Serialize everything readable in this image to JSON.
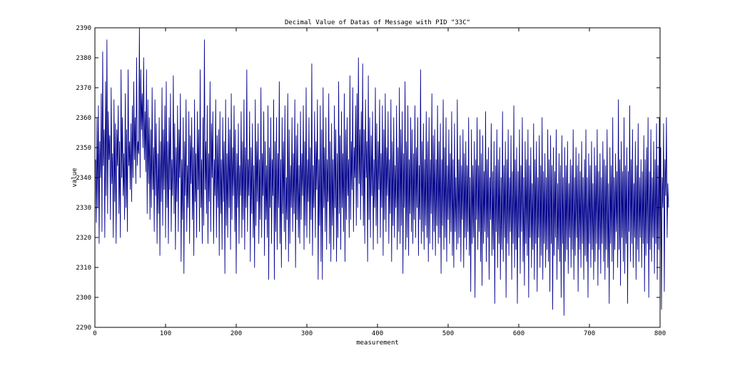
{
  "chart_data": {
    "type": "line",
    "title": "Decimal Value of Datas of Message with PID \"33C\"",
    "xlabel": "measurement",
    "ylabel": "value",
    "xlim": [
      0,
      800
    ],
    "ylim": [
      2290,
      2390
    ],
    "xticks": [
      0,
      100,
      200,
      300,
      400,
      500,
      600,
      700,
      800
    ],
    "yticks": [
      2290,
      2300,
      2310,
      2320,
      2330,
      2340,
      2350,
      2360,
      2370,
      2380,
      2390
    ],
    "grid": false,
    "series": [
      {
        "color": "#00008b",
        "x_start": 1,
        "x_step": 1,
        "values": [
          2346,
          2325,
          2360,
          2330,
          2364,
          2318,
          2352,
          2340,
          2368,
          2322,
          2382,
          2344,
          2356,
          2320,
          2372,
          2334,
          2386,
          2328,
          2362,
          2346,
          2354,
          2326,
          2370,
          2338,
          2348,
          2320,
          2366,
          2332,
          2358,
          2318,
          2356,
          2344,
          2364,
          2328,
          2352,
          2320,
          2376,
          2340,
          2360,
          2334,
          2348,
          2326,
          2368,
          2330,
          2356,
          2322,
          2376,
          2344,
          2352,
          2336,
          2358,
          2332,
          2364,
          2340,
          2372,
          2346,
          2360,
          2338,
          2380,
          2344,
          2352,
          2348,
          2390,
          2340,
          2376,
          2356,
          2368,
          2350,
          2380,
          2346,
          2362,
          2342,
          2376,
          2328,
          2366,
          2338,
          2360,
          2326,
          2356,
          2330,
          2370,
          2336,
          2350,
          2322,
          2366,
          2334,
          2358,
          2318,
          2348,
          2328,
          2360,
          2314,
          2352,
          2332,
          2370,
          2324,
          2356,
          2336,
          2364,
          2320,
          2372,
          2330,
          2352,
          2318,
          2360,
          2336,
          2368,
          2322,
          2346,
          2334,
          2374,
          2328,
          2358,
          2316,
          2350,
          2332,
          2364,
          2322,
          2356,
          2340,
          2368,
          2312,
          2346,
          2326,
          2360,
          2308,
          2352,
          2334,
          2366,
          2322,
          2344,
          2330,
          2362,
          2318,
          2354,
          2338,
          2360,
          2326,
          2350,
          2314,
          2366,
          2332,
          2348,
          2320,
          2362,
          2336,
          2356,
          2322,
          2376,
          2330,
          2346,
          2318,
          2360,
          2324,
          2386,
          2336,
          2352,
          2328,
          2364,
          2318,
          2348,
          2332,
          2372,
          2322,
          2358,
          2340,
          2362,
          2318,
          2346,
          2334,
          2366,
          2320,
          2354,
          2330,
          2356,
          2314,
          2362,
          2328,
          2346,
          2316,
          2360,
          2332,
          2352,
          2308,
          2366,
          2324,
          2348,
          2320,
          2360,
          2330,
          2356,
          2316,
          2368,
          2326,
          2350,
          2334,
          2364,
          2322,
          2356,
          2308,
          2348,
          2330,
          2358,
          2318,
          2344,
          2334,
          2362,
          2320,
          2352,
          2326,
          2366,
          2316,
          2350,
          2330,
          2376,
          2322,
          2346,
          2334,
          2362,
          2312,
          2350,
          2328,
          2358,
          2320,
          2344,
          2310,
          2366,
          2324,
          2352,
          2332,
          2358,
          2318,
          2346,
          2326,
          2370,
          2320,
          2348,
          2334,
          2362,
          2314,
          2352,
          2326,
          2344,
          2320,
          2364,
          2306,
          2350,
          2330,
          2360,
          2318,
          2346,
          2334,
          2366,
          2306,
          2352,
          2322,
          2360,
          2316,
          2348,
          2330,
          2372,
          2318,
          2346,
          2310,
          2360,
          2328,
          2352,
          2322,
          2364,
          2316,
          2340,
          2326,
          2368,
          2312,
          2356,
          2318,
          2344,
          2330,
          2360,
          2322,
          2348,
          2328,
          2366,
          2310,
          2354,
          2326,
          2358,
          2320,
          2344,
          2318,
          2362,
          2326,
          2348,
          2334,
          2364,
          2316,
          2352,
          2324,
          2370,
          2320,
          2346,
          2332,
          2360,
          2318,
          2350,
          2326,
          2378,
          2314,
          2344,
          2330,
          2362,
          2320,
          2352,
          2336,
          2366,
          2306,
          2346,
          2324,
          2364,
          2312,
          2356,
          2306,
          2370,
          2330,
          2350,
          2322,
          2360,
          2316,
          2346,
          2332,
          2368,
          2318,
          2352,
          2312,
          2358,
          2324,
          2346,
          2316,
          2364,
          2330,
          2356,
          2312,
          2348,
          2320,
          2372,
          2328,
          2354,
          2316,
          2362,
          2330,
          2348,
          2322,
          2368,
          2312,
          2356,
          2326,
          2360,
          2334,
          2346,
          2320,
          2374,
          2326,
          2352,
          2336,
          2370,
          2322,
          2350,
          2340,
          2364,
          2324,
          2368,
          2330,
          2380,
          2338,
          2356,
          2326,
          2362,
          2334,
          2378,
          2324,
          2356,
          2318,
          2366,
          2340,
          2352,
          2312,
          2374,
          2326,
          2360,
          2320,
          2354,
          2334,
          2362,
          2316,
          2346,
          2330,
          2370,
          2324,
          2358,
          2318,
          2352,
          2336,
          2366,
          2320,
          2348,
          2330,
          2364,
          2314,
          2356,
          2326,
          2368,
          2322,
          2350,
          2334,
          2362,
          2318,
          2346,
          2328,
          2366,
          2312,
          2352,
          2324,
          2360,
          2320,
          2344,
          2330,
          2364,
          2316,
          2350,
          2322,
          2370,
          2318,
          2356,
          2324,
          2362,
          2308,
          2348,
          2330,
          2372,
          2316,
          2352,
          2320,
          2364,
          2314,
          2346,
          2328,
          2360,
          2322,
          2356,
          2318,
          2348,
          2326,
          2364,
          2320,
          2350,
          2330,
          2360,
          2314,
          2344,
          2326,
          2376,
          2318,
          2352,
          2322,
          2358,
          2316,
          2346,
          2324,
          2362,
          2320,
          2352,
          2312,
          2360,
          2318,
          2346,
          2328,
          2368,
          2316,
          2354,
          2322,
          2356,
          2314,
          2346,
          2324,
          2364,
          2318,
          2352,
          2320,
          2358,
          2308,
          2346,
          2324,
          2366,
          2316,
          2350,
          2320,
          2360,
          2312,
          2344,
          2326,
          2356,
          2318,
          2348,
          2322,
          2362,
          2314,
          2346,
          2310,
          2358,
          2322,
          2340,
          2316,
          2366,
          2318,
          2346,
          2320,
          2354,
          2312,
          2344,
          2326,
          2356,
          2310,
          2348,
          2320,
          2352,
          2316,
          2344,
          2322,
          2360,
          2314,
          2340,
          2302,
          2356,
          2318,
          2344,
          2320,
          2352,
          2300,
          2346,
          2326,
          2360,
          2316,
          2344,
          2322,
          2356,
          2312,
          2348,
          2304,
          2354,
          2318,
          2342,
          2322,
          2362,
          2312,
          2346,
          2320,
          2350,
          2306,
          2340,
          2326,
          2358,
          2314,
          2342,
          2316,
          2352,
          2298,
          2344,
          2322,
          2356,
          2310,
          2346,
          2318,
          2350,
          2306,
          2340,
          2316,
          2362,
          2312,
          2344,
          2320,
          2352,
          2300,
          2346,
          2318,
          2356,
          2314,
          2340,
          2322,
          2354,
          2306,
          2342,
          2318,
          2364,
          2310,
          2346,
          2316,
          2350,
          2298,
          2342,
          2320,
          2356,
          2308,
          2344,
          2322,
          2360,
          2312,
          2340,
          2304,
          2352,
          2318,
          2346,
          2314,
          2356,
          2300,
          2344,
          2320,
          2350,
          2310,
          2338,
          2316,
          2358,
          2306,
          2346,
          2318,
          2352,
          2302,
          2340,
          2320,
          2354,
          2310,
          2344,
          2314,
          2360,
          2306,
          2342,
          2318,
          2348,
          2310,
          2340,
          2316,
          2356,
          2312,
          2346,
          2302,
          2354,
          2318,
          2344,
          2296,
          2350,
          2314,
          2342,
          2320,
          2356,
          2306,
          2338,
          2316,
          2348,
          2312,
          2344,
          2300,
          2354,
          2318,
          2340,
          2294,
          2350,
          2312,
          2344,
          2316,
          2352,
          2308,
          2338,
          2320,
          2346,
          2310,
          2344,
          2316,
          2356,
          2306,
          2340,
          2314,
          2350,
          2320,
          2344,
          2302,
          2348,
          2316,
          2342,
          2310,
          2352,
          2318,
          2340,
          2306,
          2346,
          2314,
          2356,
          2312,
          2340,
          2300,
          2348,
          2318,
          2344,
          2310,
          2352,
          2316,
          2338,
          2306,
          2350,
          2312,
          2344,
          2318,
          2356,
          2304,
          2342,
          2316,
          2348,
          2308,
          2340,
          2318,
          2352,
          2312,
          2346,
          2306,
          2344,
          2316,
          2356,
          2310,
          2338,
          2298,
          2350,
          2318,
          2344,
          2312,
          2360,
          2306,
          2340,
          2316,
          2348,
          2322,
          2342,
          2310,
          2366,
          2316,
          2346,
          2304,
          2352,
          2320,
          2342,
          2312,
          2360,
          2308,
          2344,
          2318,
          2350,
          2298,
          2342,
          2322,
          2364,
          2312,
          2346,
          2318,
          2356,
          2310,
          2338,
          2320,
          2352,
          2306,
          2344,
          2316,
          2358,
          2312,
          2340,
          2320,
          2346,
          2310,
          2342,
          2318,
          2354,
          2302,
          2346,
          2314,
          2350,
          2318,
          2360,
          2300,
          2342,
          2316,
          2356,
          2312,
          2340,
          2320,
          2352,
          2308,
          2346,
          2318,
          2358,
          2306,
          2344,
          2316,
          2360,
          2312,
          2350,
          2296,
          2340,
          2330,
          2358,
          2302,
          2346,
          2334,
          2360,
          2320,
          2338,
          2330
        ]
      }
    ]
  }
}
